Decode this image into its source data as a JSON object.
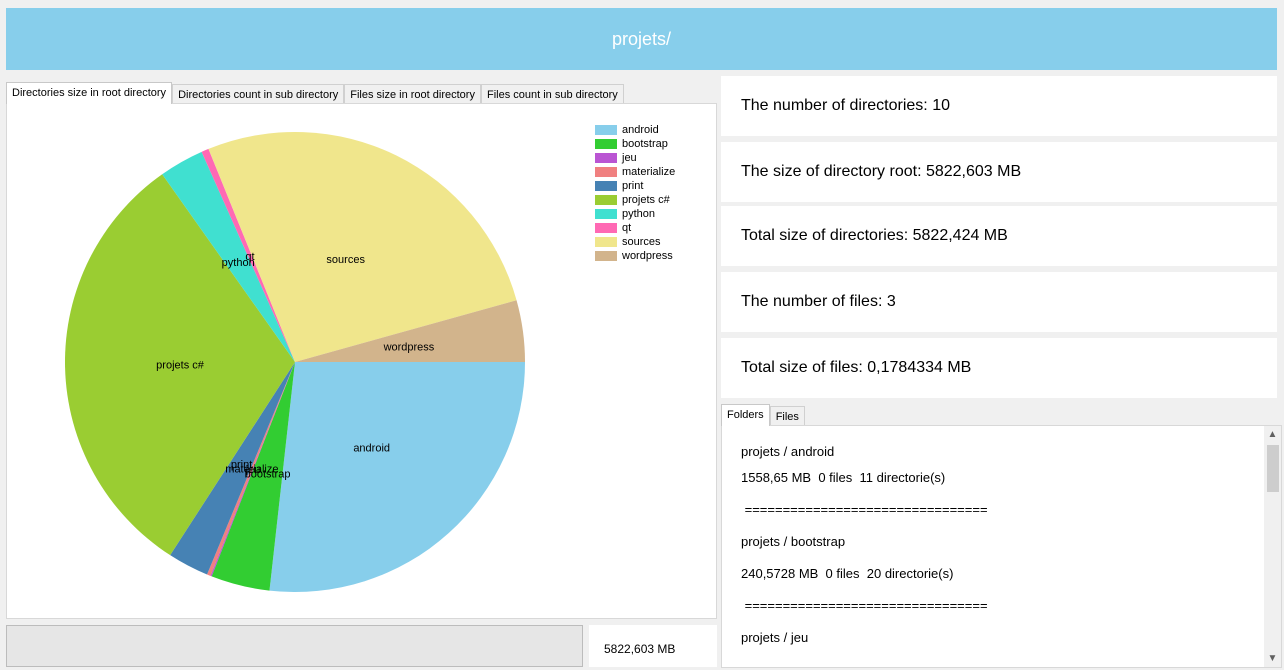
{
  "header": {
    "title": "projets/"
  },
  "left_tabs": [
    "Directories size in root directory",
    "Directories count in sub directory",
    "Files size in root directory",
    "Files count in sub directory"
  ],
  "chart_data": {
    "type": "pie",
    "categories": [
      "android",
      "bootstrap",
      "jeu",
      "materialize",
      "print",
      "projets c#",
      "python",
      "qt",
      "sources",
      "wordpress"
    ],
    "values": [
      1558.65,
      240.57,
      5.0,
      15.0,
      168.0,
      1809.0,
      183.0,
      30.0,
      1561.0,
      252.0
    ],
    "colors": [
      "#87ceeb",
      "#32cd32",
      "#ba55d3",
      "#f08080",
      "#4682b4",
      "#9acd32",
      "#40e0d0",
      "#ff69b4",
      "#f0e68c",
      "#d2b48c"
    ],
    "labels": [
      "android",
      "bootstrap",
      "jeu",
      "materialize",
      "print",
      "projets c#",
      "python",
      "qt",
      "sources",
      "wordpress"
    ],
    "legend_position": "top-right"
  },
  "bottom": {
    "progress": 0,
    "total": "5822,603 MB"
  },
  "stats": [
    "The number of directories: 10",
    "The size of directory root: 5822,603 MB",
    "Total size of directories: 5822,424 MB",
    "The number of files: 3",
    "Total size of files: 0,1784334 MB"
  ],
  "right_tabs": [
    "Folders",
    "Files"
  ],
  "folders": [
    "projets / android",
    "1558,65 MB  0 files  11 directorie(s)",
    " ================================",
    "projets / bootstrap",
    "240,5728 MB  0 files  20 directorie(s)",
    " ================================",
    "projets / jeu"
  ],
  "scroll": {
    "up": "▲",
    "down": "▼"
  }
}
